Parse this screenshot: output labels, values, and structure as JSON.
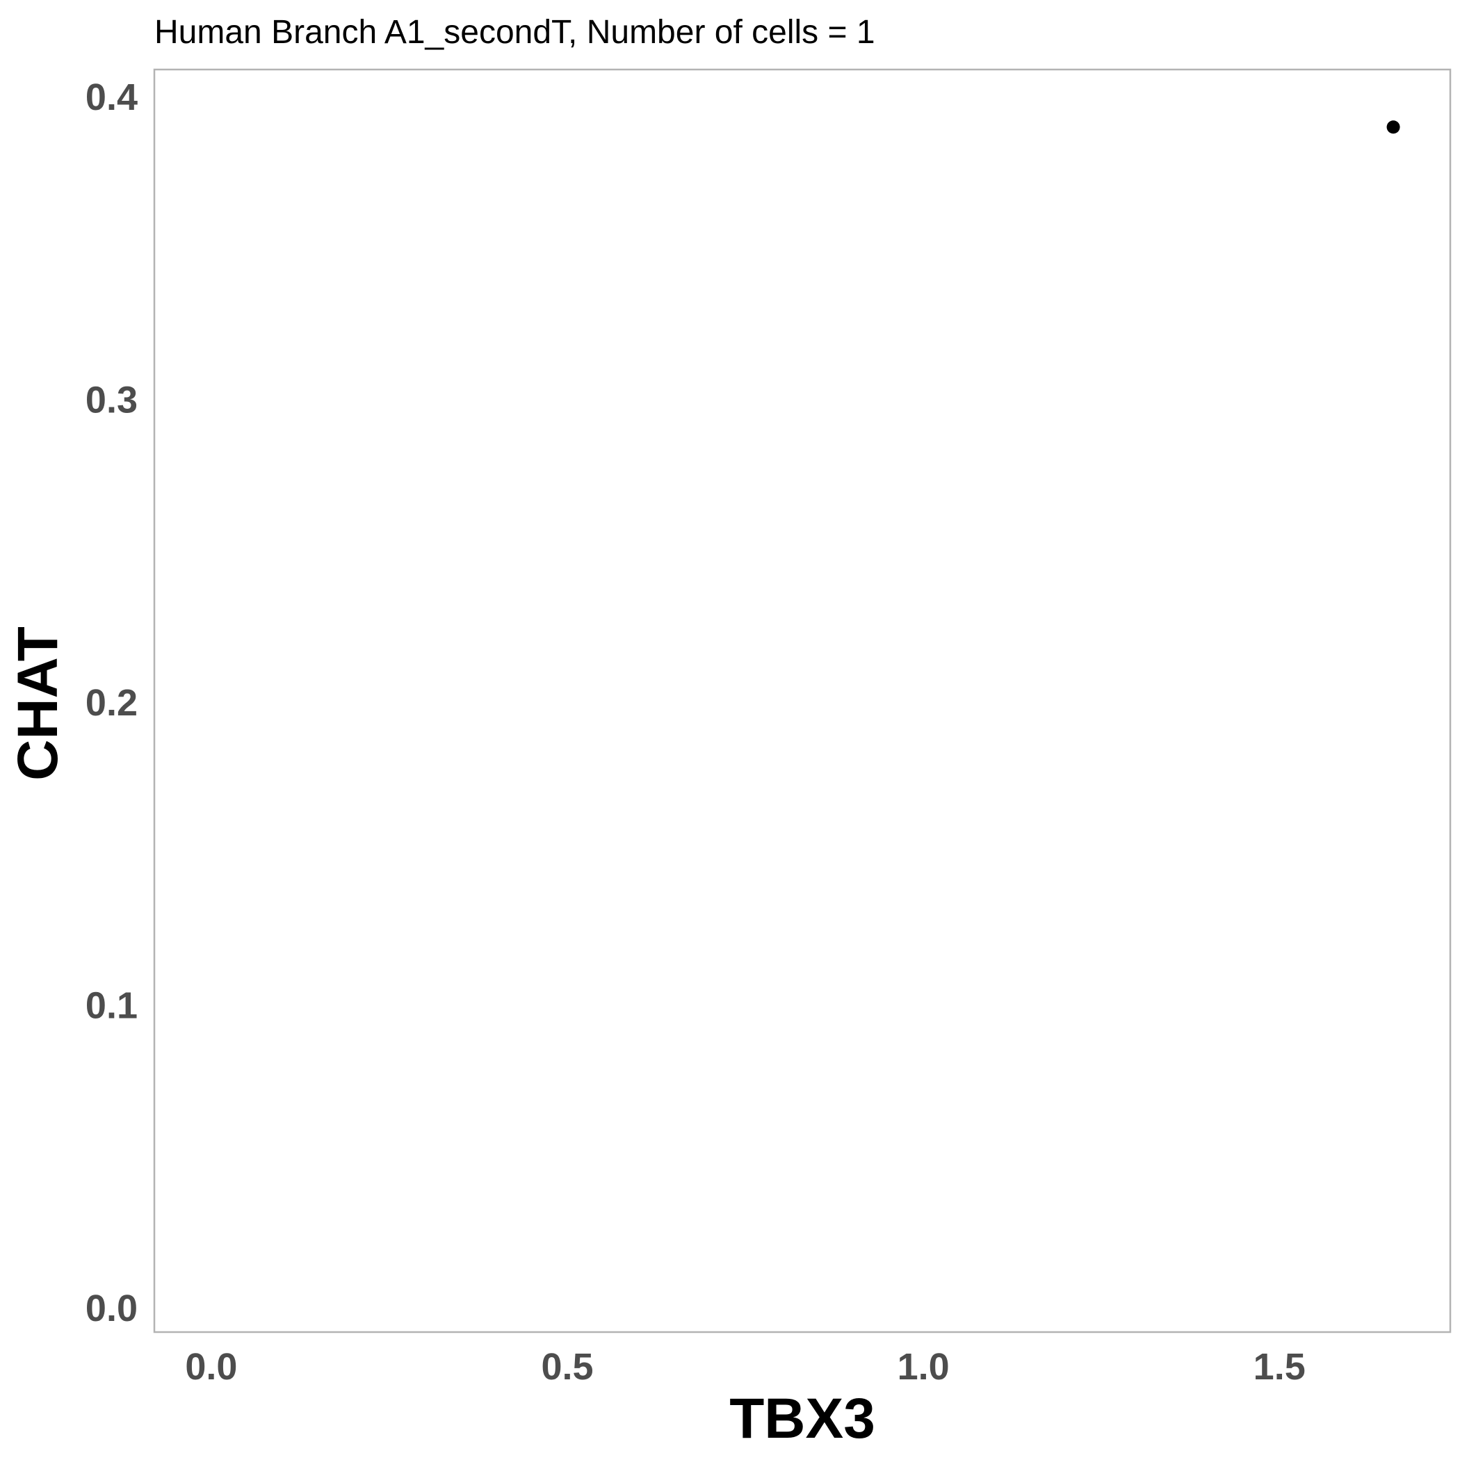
{
  "chart_data": {
    "type": "scatter",
    "title": "Human Branch A1_secondT, Number of cells = 1",
    "xlabel": "TBX3",
    "ylabel": "CHAT",
    "xlim": [
      -0.08,
      1.74
    ],
    "ylim": [
      -0.008,
      0.409
    ],
    "x_ticks": [
      "0.0",
      "0.5",
      "1.0",
      "1.5"
    ],
    "y_ticks": [
      "0.0",
      "0.1",
      "0.2",
      "0.3",
      "0.4"
    ],
    "grid": false,
    "series": [
      {
        "x": [
          1.66
        ],
        "y": [
          0.39
        ]
      }
    ],
    "point_color": "#000000",
    "panel_border_color": "#b3b3b3"
  }
}
